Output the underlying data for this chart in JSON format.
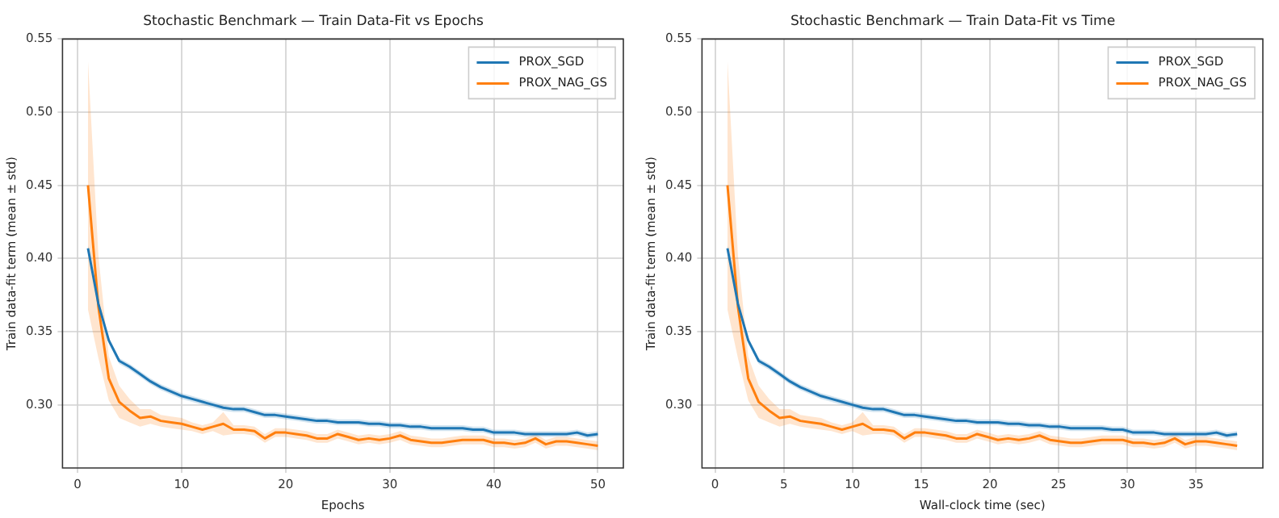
{
  "chart_data": [
    {
      "type": "line",
      "title": "Stochastic Benchmark — Train Data-Fit vs Epochs",
      "xlabel": "Epochs",
      "ylabel": "Train data-fit term (mean ± std)",
      "xlim": [
        -1.45,
        52.45
      ],
      "xticks": [
        0,
        10,
        20,
        30,
        40,
        50
      ],
      "ylim": [
        0.2568,
        0.55
      ],
      "yticks": [
        {
          "value": 0.3,
          "label": "0.30"
        },
        0.35,
        {
          "value": 0.4,
          "label": "0.40"
        },
        0.45,
        {
          "value": 0.5,
          "label": "0.50"
        },
        0.55
      ],
      "grid": true,
      "legend": "top right",
      "series": [
        {
          "name": "PROX_SGD",
          "color": "#1f77b4",
          "x": [
            1,
            2,
            3,
            4,
            5,
            6,
            7,
            8,
            9,
            10,
            11,
            12,
            13,
            14,
            15,
            16,
            17,
            18,
            19,
            20,
            21,
            22,
            23,
            24,
            25,
            26,
            27,
            28,
            29,
            30,
            31,
            32,
            33,
            34,
            35,
            36,
            37,
            38,
            39,
            40,
            41,
            42,
            43,
            44,
            45,
            46,
            47,
            48,
            49,
            50
          ],
          "values": [
            0.407,
            0.369,
            0.344,
            0.33,
            0.326,
            0.321,
            0.316,
            0.312,
            0.309,
            0.306,
            0.304,
            0.302,
            0.3,
            0.298,
            0.297,
            0.297,
            0.295,
            0.293,
            0.293,
            0.292,
            0.291,
            0.29,
            0.289,
            0.289,
            0.288,
            0.288,
            0.288,
            0.287,
            0.287,
            0.286,
            0.286,
            0.285,
            0.285,
            0.284,
            0.284,
            0.284,
            0.284,
            0.283,
            0.283,
            0.281,
            0.281,
            0.281,
            0.28,
            0.28,
            0.28,
            0.28,
            0.28,
            0.281,
            0.279,
            0.28
          ],
          "upper": [
            0.409,
            0.371,
            0.346,
            0.332,
            0.328,
            0.323,
            0.318,
            0.314,
            0.311,
            0.308,
            0.306,
            0.304,
            0.302,
            0.3,
            0.299,
            0.299,
            0.297,
            0.295,
            0.295,
            0.294,
            0.293,
            0.292,
            0.291,
            0.291,
            0.29,
            0.29,
            0.29,
            0.289,
            0.289,
            0.288,
            0.288,
            0.287,
            0.287,
            0.286,
            0.286,
            0.286,
            0.286,
            0.285,
            0.285,
            0.283,
            0.283,
            0.283,
            0.282,
            0.282,
            0.282,
            0.282,
            0.282,
            0.283,
            0.281,
            0.282
          ],
          "lower": [
            0.405,
            0.367,
            0.342,
            0.328,
            0.324,
            0.319,
            0.314,
            0.31,
            0.307,
            0.304,
            0.302,
            0.3,
            0.298,
            0.296,
            0.295,
            0.295,
            0.293,
            0.291,
            0.291,
            0.29,
            0.289,
            0.288,
            0.287,
            0.287,
            0.286,
            0.286,
            0.286,
            0.285,
            0.285,
            0.284,
            0.284,
            0.283,
            0.283,
            0.282,
            0.282,
            0.282,
            0.282,
            0.281,
            0.281,
            0.279,
            0.279,
            0.279,
            0.278,
            0.278,
            0.278,
            0.278,
            0.278,
            0.279,
            0.277,
            0.278
          ]
        },
        {
          "name": "PROX_NAG_GS",
          "color": "#ff7f0e",
          "x": [
            1,
            2,
            3,
            4,
            5,
            6,
            7,
            8,
            9,
            10,
            11,
            12,
            13,
            14,
            15,
            16,
            17,
            18,
            19,
            20,
            21,
            22,
            23,
            24,
            25,
            26,
            27,
            28,
            29,
            30,
            31,
            32,
            33,
            34,
            35,
            36,
            37,
            38,
            39,
            40,
            41,
            42,
            43,
            44,
            45,
            46,
            47,
            48,
            49,
            50
          ],
          "values": [
            0.45,
            0.367,
            0.318,
            0.302,
            0.296,
            0.291,
            0.292,
            0.289,
            0.288,
            0.287,
            0.285,
            0.283,
            0.285,
            0.287,
            0.283,
            0.283,
            0.282,
            0.277,
            0.281,
            0.281,
            0.28,
            0.279,
            0.277,
            0.277,
            0.28,
            0.278,
            0.276,
            0.277,
            0.276,
            0.277,
            0.279,
            0.276,
            0.275,
            0.274,
            0.274,
            0.275,
            0.276,
            0.276,
            0.276,
            0.274,
            0.274,
            0.273,
            0.274,
            0.277,
            0.273,
            0.275,
            0.275,
            0.274,
            0.273,
            0.272
          ],
          "upper": [
            0.535,
            0.402,
            0.333,
            0.313,
            0.304,
            0.297,
            0.297,
            0.293,
            0.292,
            0.291,
            0.288,
            0.286,
            0.288,
            0.295,
            0.286,
            0.286,
            0.285,
            0.28,
            0.284,
            0.284,
            0.283,
            0.282,
            0.28,
            0.28,
            0.283,
            0.281,
            0.279,
            0.28,
            0.279,
            0.28,
            0.282,
            0.279,
            0.278,
            0.277,
            0.277,
            0.278,
            0.279,
            0.279,
            0.279,
            0.277,
            0.277,
            0.276,
            0.277,
            0.28,
            0.276,
            0.278,
            0.278,
            0.277,
            0.276,
            0.275
          ],
          "lower": [
            0.365,
            0.332,
            0.303,
            0.291,
            0.288,
            0.285,
            0.287,
            0.285,
            0.284,
            0.283,
            0.282,
            0.28,
            0.282,
            0.279,
            0.28,
            0.28,
            0.279,
            0.274,
            0.278,
            0.278,
            0.277,
            0.276,
            0.274,
            0.274,
            0.277,
            0.275,
            0.273,
            0.274,
            0.273,
            0.274,
            0.276,
            0.273,
            0.272,
            0.271,
            0.271,
            0.272,
            0.273,
            0.273,
            0.273,
            0.271,
            0.271,
            0.27,
            0.271,
            0.274,
            0.27,
            0.272,
            0.272,
            0.271,
            0.27,
            0.269
          ]
        }
      ]
    },
    {
      "type": "line",
      "title": "Stochastic Benchmark — Train Data-Fit vs Time",
      "xlabel": "Wall-clock time (sec)",
      "ylabel": "Train data-fit term (mean ± std)",
      "xlim": [
        -0.955,
        39.86
      ],
      "xticks": [
        0,
        5,
        10,
        15,
        20,
        25,
        30,
        35
      ],
      "ylim": [
        0.2568,
        0.55
      ],
      "yticks": [
        {
          "value": 0.3,
          "label": "0.30"
        },
        0.35,
        {
          "value": 0.4,
          "label": "0.40"
        },
        0.45,
        {
          "value": 0.5,
          "label": "0.50"
        },
        0.55
      ],
      "grid": true,
      "legend": "top right",
      "series": [
        {
          "name": "PROX_SGD",
          "color": "#1f77b4",
          "x": [
            0.9,
            1.66,
            2.41,
            3.17,
            3.93,
            4.69,
            5.44,
            6.2,
            6.96,
            7.71,
            8.47,
            9.23,
            9.98,
            10.74,
            11.5,
            12.26,
            13.01,
            13.77,
            14.53,
            15.28,
            16.04,
            16.8,
            17.55,
            18.31,
            19.07,
            19.83,
            20.58,
            21.34,
            22.1,
            22.85,
            23.61,
            24.37,
            25.12,
            25.88,
            26.64,
            27.4,
            28.15,
            28.91,
            29.67,
            30.42,
            31.18,
            31.94,
            32.69,
            33.45,
            34.21,
            34.97,
            35.72,
            36.48,
            37.24,
            37.99
          ],
          "values": [
            0.407,
            0.369,
            0.344,
            0.33,
            0.326,
            0.321,
            0.316,
            0.312,
            0.309,
            0.306,
            0.304,
            0.302,
            0.3,
            0.298,
            0.297,
            0.297,
            0.295,
            0.293,
            0.293,
            0.292,
            0.291,
            0.29,
            0.289,
            0.289,
            0.288,
            0.288,
            0.288,
            0.287,
            0.287,
            0.286,
            0.286,
            0.285,
            0.285,
            0.284,
            0.284,
            0.284,
            0.284,
            0.283,
            0.283,
            0.281,
            0.281,
            0.281,
            0.28,
            0.28,
            0.28,
            0.28,
            0.28,
            0.281,
            0.279,
            0.28
          ],
          "upper": [
            0.409,
            0.371,
            0.346,
            0.332,
            0.328,
            0.323,
            0.318,
            0.314,
            0.311,
            0.308,
            0.306,
            0.304,
            0.302,
            0.3,
            0.299,
            0.299,
            0.297,
            0.295,
            0.295,
            0.294,
            0.293,
            0.292,
            0.291,
            0.291,
            0.29,
            0.29,
            0.29,
            0.289,
            0.289,
            0.288,
            0.288,
            0.287,
            0.287,
            0.286,
            0.286,
            0.286,
            0.286,
            0.285,
            0.285,
            0.283,
            0.283,
            0.283,
            0.282,
            0.282,
            0.282,
            0.282,
            0.282,
            0.283,
            0.281,
            0.282
          ],
          "lower": [
            0.405,
            0.367,
            0.342,
            0.328,
            0.324,
            0.319,
            0.314,
            0.31,
            0.307,
            0.304,
            0.302,
            0.3,
            0.298,
            0.296,
            0.295,
            0.295,
            0.293,
            0.291,
            0.291,
            0.29,
            0.289,
            0.288,
            0.287,
            0.287,
            0.286,
            0.286,
            0.286,
            0.285,
            0.285,
            0.284,
            0.284,
            0.283,
            0.283,
            0.282,
            0.282,
            0.282,
            0.282,
            0.281,
            0.281,
            0.279,
            0.279,
            0.279,
            0.278,
            0.278,
            0.278,
            0.278,
            0.278,
            0.279,
            0.277,
            0.278
          ]
        },
        {
          "name": "PROX_NAG_GS",
          "color": "#ff7f0e",
          "x": [
            0.9,
            1.66,
            2.41,
            3.17,
            3.93,
            4.69,
            5.44,
            6.2,
            6.96,
            7.71,
            8.47,
            9.23,
            9.98,
            10.74,
            11.5,
            12.26,
            13.01,
            13.77,
            14.53,
            15.28,
            16.04,
            16.8,
            17.55,
            18.31,
            19.07,
            19.83,
            20.58,
            21.34,
            22.1,
            22.85,
            23.61,
            24.37,
            25.12,
            25.88,
            26.64,
            27.4,
            28.15,
            28.91,
            29.67,
            30.42,
            31.18,
            31.94,
            32.69,
            33.45,
            34.21,
            34.97,
            35.72,
            36.48,
            37.24,
            37.99
          ],
          "values": [
            0.45,
            0.367,
            0.318,
            0.302,
            0.296,
            0.291,
            0.292,
            0.289,
            0.288,
            0.287,
            0.285,
            0.283,
            0.285,
            0.287,
            0.283,
            0.283,
            0.282,
            0.277,
            0.281,
            0.281,
            0.28,
            0.279,
            0.277,
            0.277,
            0.28,
            0.278,
            0.276,
            0.277,
            0.276,
            0.277,
            0.279,
            0.276,
            0.275,
            0.274,
            0.274,
            0.275,
            0.276,
            0.276,
            0.276,
            0.274,
            0.274,
            0.273,
            0.274,
            0.277,
            0.273,
            0.275,
            0.275,
            0.274,
            0.273,
            0.272
          ],
          "upper": [
            0.535,
            0.402,
            0.333,
            0.313,
            0.304,
            0.297,
            0.297,
            0.293,
            0.292,
            0.291,
            0.288,
            0.286,
            0.288,
            0.295,
            0.286,
            0.286,
            0.285,
            0.28,
            0.284,
            0.284,
            0.283,
            0.282,
            0.28,
            0.28,
            0.283,
            0.281,
            0.279,
            0.28,
            0.279,
            0.28,
            0.282,
            0.279,
            0.278,
            0.277,
            0.277,
            0.278,
            0.279,
            0.279,
            0.279,
            0.277,
            0.277,
            0.276,
            0.277,
            0.28,
            0.276,
            0.278,
            0.278,
            0.277,
            0.276,
            0.275
          ],
          "lower": [
            0.365,
            0.332,
            0.303,
            0.291,
            0.288,
            0.285,
            0.287,
            0.285,
            0.284,
            0.283,
            0.282,
            0.28,
            0.282,
            0.279,
            0.28,
            0.28,
            0.279,
            0.274,
            0.278,
            0.278,
            0.277,
            0.276,
            0.274,
            0.274,
            0.277,
            0.275,
            0.273,
            0.274,
            0.273,
            0.274,
            0.276,
            0.273,
            0.272,
            0.271,
            0.271,
            0.272,
            0.273,
            0.273,
            0.273,
            0.271,
            0.271,
            0.27,
            0.271,
            0.274,
            0.27,
            0.272,
            0.272,
            0.271,
            0.27,
            0.269
          ]
        }
      ]
    }
  ]
}
